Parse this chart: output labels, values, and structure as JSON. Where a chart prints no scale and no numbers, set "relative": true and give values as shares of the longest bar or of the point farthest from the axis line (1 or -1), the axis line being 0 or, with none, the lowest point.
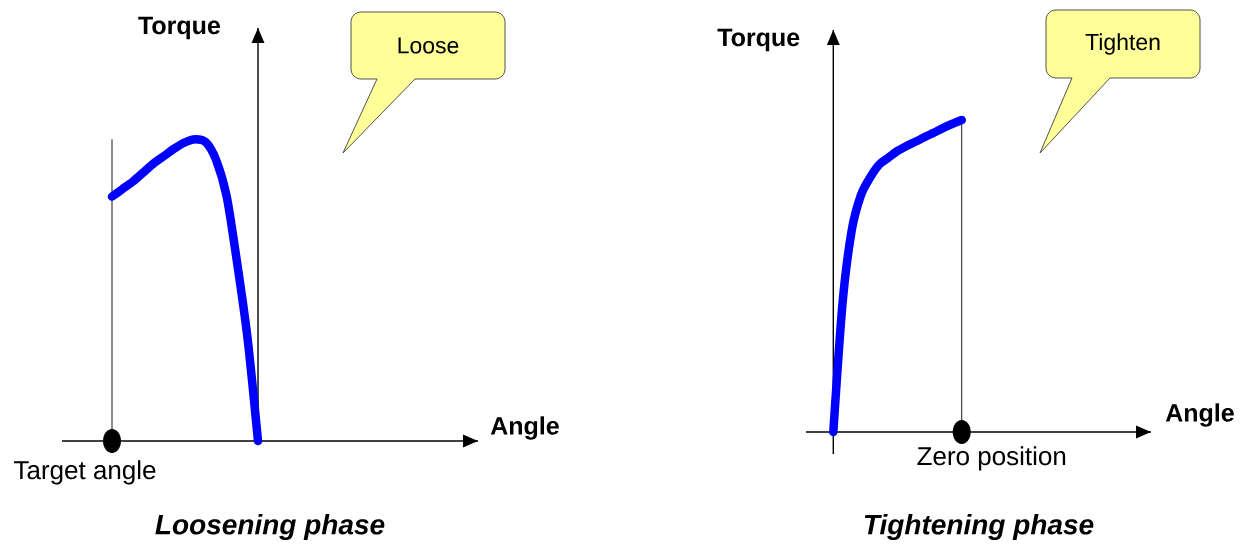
{
  "chart_data": [
    {
      "type": "line",
      "title": "Loosening phase",
      "ylabel": "Torque",
      "relative": true,
      "categories": [
        null,
        null,
        null,
        null,
        null,
        null,
        null,
        null,
        null,
        null,
        null,
        null,
        null,
        null,
        null
      ],
      "values": [
        0.81,
        0.835,
        0.86,
        0.89,
        0.92,
        0.945,
        0.97,
        0.99,
        1,
        0.99,
        0.93,
        0.81,
        0.59,
        0.34,
        0
      ],
      "color": "#0000ff",
      "annotations": [
        "Loose",
        "Target angle",
        "Angle"
      ]
    },
    {
      "type": "line",
      "title": "Tightening phase",
      "ylabel": "Torque",
      "relative": true,
      "categories": [
        null,
        null,
        null,
        null,
        null,
        null,
        null,
        null,
        null,
        null,
        null,
        null,
        null,
        null,
        null
      ],
      "values": [
        0,
        0.411,
        0.645,
        0.758,
        0.815,
        0.857,
        0.879,
        0.901,
        0.917,
        0.931,
        0.946,
        0.96,
        0.975,
        0.988,
        1
      ],
      "color": "#0000ff",
      "annotations": [
        "Tighten",
        "Zero position",
        "Angle"
      ]
    }
  ]
}
